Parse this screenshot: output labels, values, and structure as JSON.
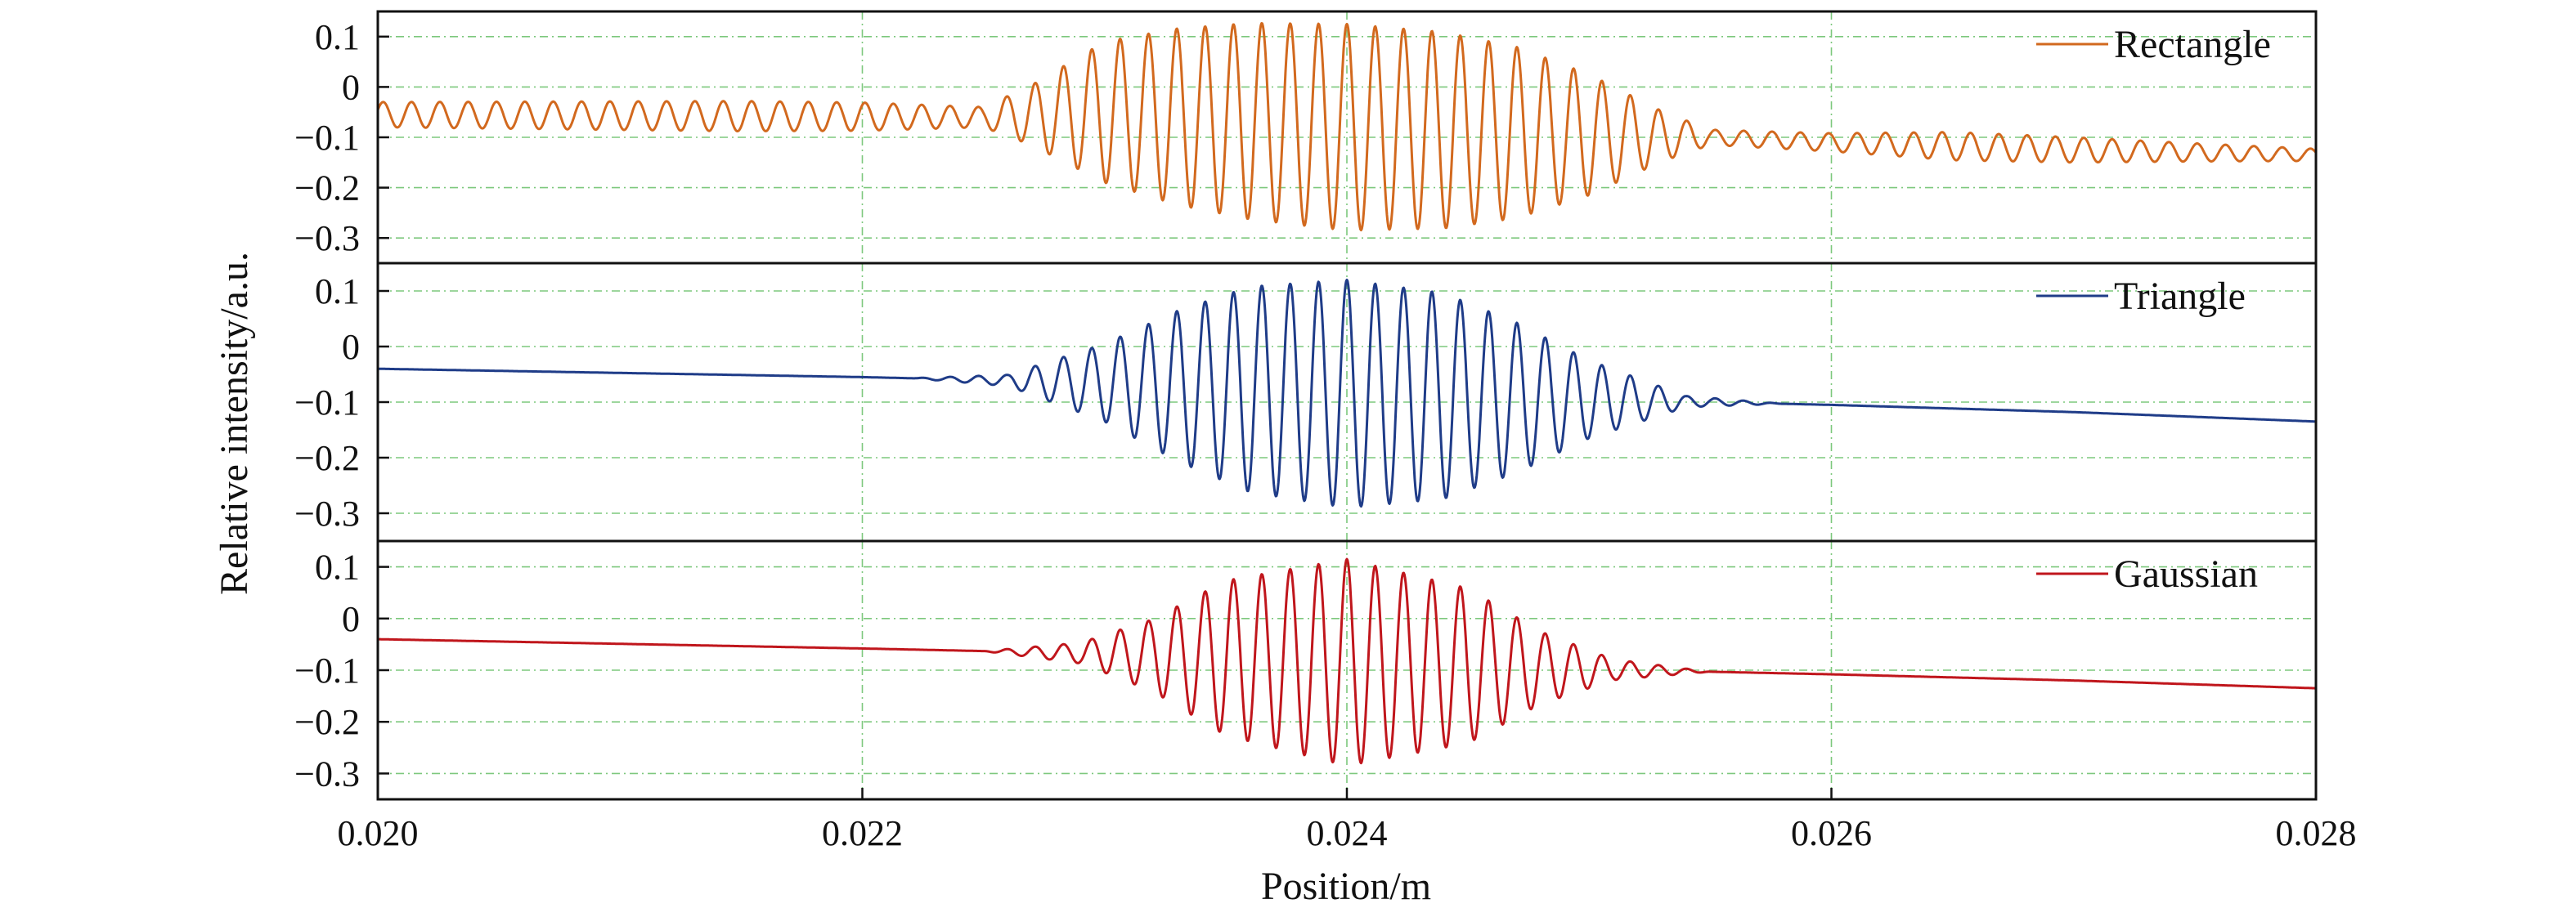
{
  "chart_data": {
    "type": "line",
    "xlabel": "Position/m",
    "ylabel": "Relative intensity/a.u.",
    "xlim": [
      0.02,
      0.028
    ],
    "x_ticks": [
      "0.020",
      "0.022",
      "0.024",
      "0.026",
      "0.028"
    ],
    "ylim": [
      -0.35,
      0.15
    ],
    "y_ticks": [
      "0.1",
      "0",
      "−0.1",
      "−0.2",
      "−0.3"
    ],
    "grid": true,
    "legend_position": "top-right",
    "shared_x": true,
    "panels": [
      {
        "series": [
          {
            "name": "Rectangle",
            "color": "#D2691E",
            "carrier_period": 0.000117,
            "center": 0.024,
            "baseline": [
              [
                0.02,
                -0.055
              ],
              [
                0.0225,
                -0.06
              ],
              [
                0.023,
                -0.05
              ],
              [
                0.024,
                -0.08
              ],
              [
                0.025,
                -0.095
              ],
              [
                0.0255,
                -0.1
              ],
              [
                0.026,
                -0.11
              ],
              [
                0.027,
                -0.125
              ],
              [
                0.028,
                -0.135
              ]
            ],
            "amplitude": [
              [
                0.02,
                0.025
              ],
              [
                0.0215,
                0.03
              ],
              [
                0.022,
                0.028
              ],
              [
                0.0225,
                0.02
              ],
              [
                0.0227,
                0.06
              ],
              [
                0.023,
                0.14
              ],
              [
                0.0233,
                0.175
              ],
              [
                0.0236,
                0.195
              ],
              [
                0.024,
                0.205
              ],
              [
                0.0244,
                0.195
              ],
              [
                0.0247,
                0.17
              ],
              [
                0.025,
                0.12
              ],
              [
                0.0253,
                0.05
              ],
              [
                0.0255,
                0.015
              ],
              [
                0.026,
                0.018
              ],
              [
                0.0265,
                0.028
              ],
              [
                0.027,
                0.025
              ],
              [
                0.0275,
                0.018
              ],
              [
                0.028,
                0.012
              ]
            ]
          }
        ]
      },
      {
        "series": [
          {
            "name": "Triangle",
            "color": "#1F3C88",
            "carrier_period": 0.000117,
            "center": 0.024,
            "baseline": [
              [
                0.02,
                -0.04
              ],
              [
                0.022,
                -0.055
              ],
              [
                0.023,
                -0.065
              ],
              [
                0.024,
                -0.085
              ],
              [
                0.025,
                -0.095
              ],
              [
                0.026,
                -0.105
              ],
              [
                0.027,
                -0.118
              ],
              [
                0.028,
                -0.135
              ]
            ],
            "amplitude": [
              [
                0.02,
                0.0
              ],
              [
                0.0222,
                0.0
              ],
              [
                0.0226,
                0.01
              ],
              [
                0.023,
                0.07
              ],
              [
                0.0233,
                0.135
              ],
              [
                0.0236,
                0.185
              ],
              [
                0.024,
                0.205
              ],
              [
                0.0244,
                0.185
              ],
              [
                0.0247,
                0.135
              ],
              [
                0.025,
                0.07
              ],
              [
                0.0254,
                0.01
              ],
              [
                0.0258,
                0.0
              ],
              [
                0.028,
                0.0
              ]
            ]
          }
        ]
      },
      {
        "series": [
          {
            "name": "Gaussian",
            "color": "#C0161C",
            "carrier_period": 0.000117,
            "center": 0.024,
            "baseline": [
              [
                0.02,
                -0.04
              ],
              [
                0.022,
                -0.058
              ],
              [
                0.023,
                -0.068
              ],
              [
                0.024,
                -0.085
              ],
              [
                0.025,
                -0.098
              ],
              [
                0.026,
                -0.108
              ],
              [
                0.027,
                -0.12
              ],
              [
                0.028,
                -0.135
              ]
            ],
            "amplitude": [
              [
                0.02,
                0.0
              ],
              [
                0.0225,
                0.0
              ],
              [
                0.0229,
                0.02
              ],
              [
                0.0232,
                0.07
              ],
              [
                0.0235,
                0.15
              ],
              [
                0.024,
                0.2
              ],
              [
                0.0245,
                0.15
              ],
              [
                0.0248,
                0.07
              ],
              [
                0.0251,
                0.02
              ],
              [
                0.0255,
                0.0
              ],
              [
                0.028,
                0.0
              ]
            ]
          }
        ]
      }
    ]
  }
}
